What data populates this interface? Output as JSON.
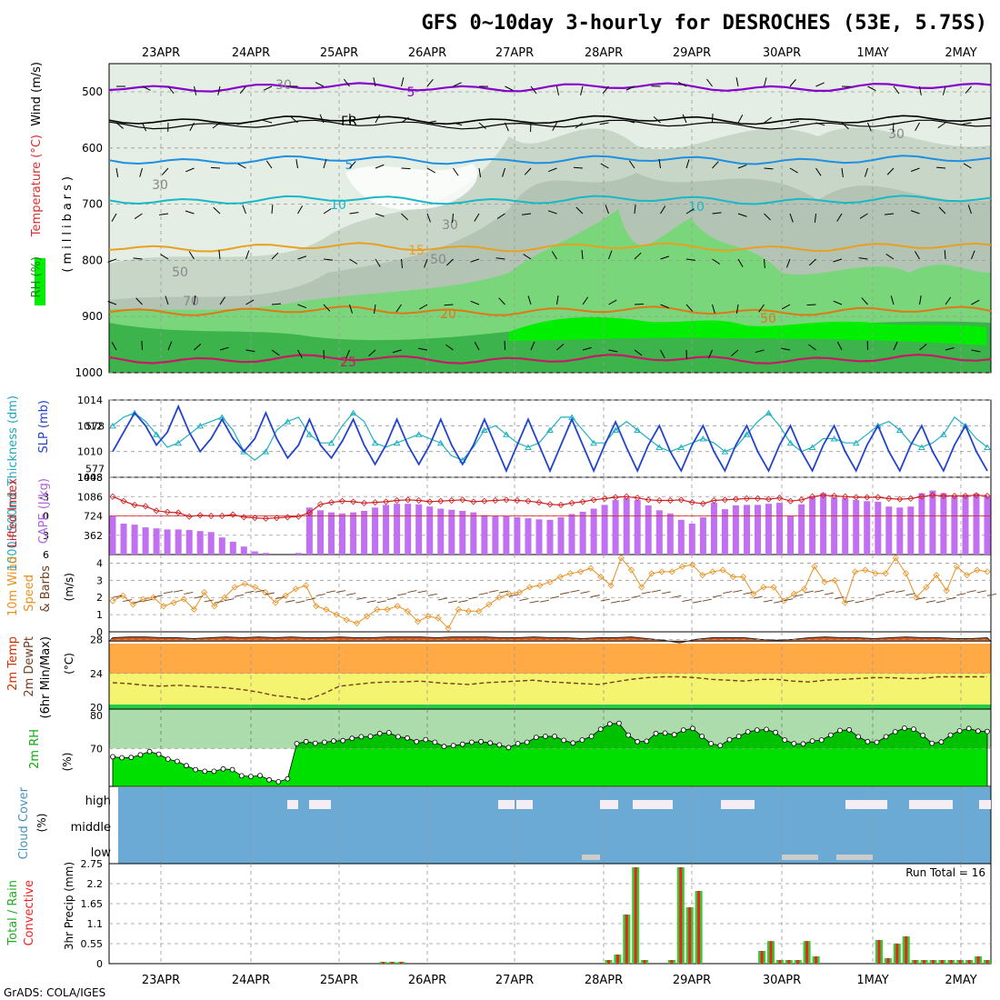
{
  "title": "GFS 0~10day 3-hourly for DESROCHES (53E, 5.75S)",
  "credit": "GrADS: COLA/IGES",
  "date_labels": [
    "23APR",
    "24APR",
    "25APR",
    "26APR",
    "27APR",
    "28APR",
    "29APR",
    "30APR",
    "1MAY",
    "2MAY"
  ],
  "colors": {
    "temp_contour_purple": "#8800cc",
    "temp_contour_blue": "#1e90e0",
    "temp_contour_cyan": "#19b8c8",
    "temp_contour_orange": "#e8a020",
    "temp_contour_darkorange": "#e07818",
    "temp_contour_magenta": "#c81868",
    "rh_green": "#3cb44b",
    "rh_bright": "#00ee00",
    "cape_bar": "#c070f0",
    "lifted_index": "#d02020",
    "slp_line": "#2244cc",
    "thickness_line": "#20b0c0",
    "wind_speed": "#e89020",
    "barb": "#704020",
    "temp_band": "#ffaa44",
    "dew_band": "#f4f470",
    "rh2m": "#00e000",
    "cloud": "#6aaad4",
    "cloud_gap": "#f4eef4",
    "precip_total": "#33cc33",
    "precip_conv": "#ee2222"
  },
  "panels": {
    "upper": {
      "label_rh": "RH (%)",
      "label_temp": "Temperature (°C)",
      "label_wind": "Wind (m/s)",
      "label_units": "(millibars)",
      "y_ticks": [
        "500",
        "600",
        "700",
        "800",
        "900",
        "1000"
      ],
      "contour_labels": [
        "5",
        "FR",
        "5",
        "10",
        "15",
        "20",
        "25",
        "10",
        "30",
        "30",
        "50",
        "70",
        "50",
        "30",
        "30",
        "50"
      ]
    },
    "slp": {
      "label_thick": "1000~500mb Thickness (dm)",
      "label_slp": "SLP (mb)",
      "left_ticks": [
        "578",
        "577"
      ],
      "right_ticks": [
        "1014",
        "1012",
        "1010",
        "1008"
      ]
    },
    "cape": {
      "label_li": "Lifted Index",
      "label_cape": "CAPE (J/kg)",
      "left_ticks": [
        "-3",
        "0",
        "3",
        "6",
        "-6"
      ],
      "right_ticks": [
        "1448",
        "1086",
        "724",
        "362"
      ]
    },
    "wind10": {
      "label1": "10m Wind",
      "label2": "Speed",
      "label3": "& Barbs",
      "units": "(m/s)",
      "ticks": [
        "4",
        "3",
        "2",
        "1",
        "0"
      ]
    },
    "temp2m": {
      "label1": "2m Temp",
      "label2": "2m DewPt",
      "label3": "(6hr Min/Max)",
      "units": "(°C)",
      "ticks": [
        "28",
        "24",
        "20"
      ]
    },
    "rh2m": {
      "label": "2m RH",
      "units": "(%)",
      "ticks": [
        "80",
        "70"
      ]
    },
    "cloud": {
      "label": "Cloud Cover",
      "units": "(%)",
      "levels": [
        "high",
        "middle",
        "low"
      ]
    },
    "precip": {
      "label1": "Total / Rain",
      "label2": "Convective",
      "units": "3hr Precip (mm)",
      "ticks": [
        "2.75",
        "2.2",
        "1.65",
        "1.1",
        "0.55",
        "0"
      ],
      "run_total": "Run Total = 16"
    }
  },
  "chart_data": [
    {
      "type": "line",
      "title": "1000~500mb Thickness (dm) / SLP (mb)",
      "x_unit": "3-hourly steps from 22APR 18Z",
      "series": [
        {
          "name": "SLP (mb)",
          "axis": "right",
          "values": [
            1010,
            1011.5,
            1013,
            1012,
            1010.5,
            1011.5,
            1013.5,
            1011.5,
            1010,
            1011,
            1012.5,
            1011,
            1010,
            1011,
            1013,
            1011,
            1009.5,
            1010.5,
            1012.5,
            1010.5,
            1009.5,
            1010.8,
            1012.5,
            1010.5,
            1009,
            1010.5,
            1012.5,
            1010.5,
            1009,
            1010.5,
            1012.5,
            1010.5,
            1009,
            1010.5,
            1012.5,
            1010.5,
            1008.5,
            1010.5,
            1012.5,
            1010.5,
            1008.5,
            1010.5,
            1012.5,
            1010.5,
            1008.5,
            1010.5,
            1012.3,
            1010.3,
            1008.5,
            1010.5,
            1012,
            1010,
            1008.5,
            1010.5,
            1012,
            1010,
            1008.5,
            1010.5,
            1012,
            1010,
            1008.5,
            1010.5,
            1012,
            1010,
            1008.5,
            1010.5,
            1012,
            1010,
            1008.5,
            1010.5,
            1012,
            1010,
            1008.5,
            1010.5,
            1012,
            1010,
            1008.5,
            1010.5,
            1012,
            1010,
            1008.5
          ]
        },
        {
          "name": "Thickness (dm)",
          "axis": "left",
          "values": [
            578,
            578.2,
            578.3,
            578.1,
            577.8,
            577.5,
            577.6,
            577.8,
            578,
            578.1,
            578.2,
            577.9,
            577.4,
            577.2,
            577.4,
            577.9,
            578.1,
            578.2,
            577.8,
            577.6,
            577.6,
            578,
            578.3,
            578.1,
            577.6,
            577.5,
            577.6,
            577.7,
            577.8,
            577.7,
            577.6,
            577.3,
            577.2,
            577.5,
            577.9,
            578,
            577.8,
            577.6,
            577.5,
            577.6,
            577.9,
            578.2,
            578.2,
            577.9,
            577.6,
            577.6,
            577.9,
            578.1,
            577.9,
            577.7,
            577.5,
            577.4,
            577.5,
            577.6,
            577.7,
            577.6,
            577.4,
            577.5,
            577.8,
            578.1,
            578.3,
            578,
            577.6,
            577.4,
            577.5,
            577.7,
            577.7,
            577.6,
            577.6,
            577.8,
            578,
            578.1,
            577.9,
            577.6,
            577.5,
            577.6,
            577.8,
            578.2,
            578,
            577.7,
            577.5
          ]
        }
      ],
      "ylim_left": [
        576.8,
        578.6
      ],
      "ylim_right": [
        1008,
        1014
      ]
    },
    {
      "type": "bar",
      "title": "CAPE (J/kg) / Lifted Index",
      "series": [
        {
          "name": "CAPE (J/kg)",
          "values": [
            720,
            580,
            560,
            510,
            490,
            470,
            470,
            460,
            440,
            420,
            320,
            240,
            150,
            60,
            30,
            0,
            0,
            30,
            880,
            830,
            790,
            770,
            790,
            820,
            880,
            930,
            950,
            950,
            940,
            900,
            860,
            840,
            820,
            790,
            740,
            720,
            720,
            700,
            680,
            660,
            650,
            700,
            760,
            800,
            860,
            930,
            1020,
            1060,
            1020,
            920,
            830,
            770,
            650,
            580,
            700,
            970,
            850,
            920,
            930,
            930,
            950,
            970,
            730,
            940,
            1090,
            1150,
            1070,
            1060,
            1020,
            1000,
            990,
            900,
            880,
            900,
            1150,
            1200,
            1150,
            1100,
            1120,
            1140,
            1100
          ]
        },
        {
          "name": "Lifted Index",
          "values": [
            -3,
            -2.3,
            -1.7,
            -1.5,
            -0.8,
            -0.6,
            -0.5,
            0.1,
            -0.1,
            0,
            0,
            -0.2,
            0.2,
            0.3,
            0.4,
            0.3,
            0.2,
            0.1,
            -0.5,
            -1.8,
            -2.1,
            -2.3,
            -2.2,
            -2.0,
            -2.1,
            -2.2,
            -2.4,
            -2.5,
            -2.4,
            -2.2,
            -2.3,
            -2.4,
            -2.5,
            -2.2,
            -2.3,
            -2.4,
            -2.5,
            -2.4,
            -2.3,
            -2.1,
            -1.8,
            -1.7,
            -2.0,
            -2.2,
            -2.5,
            -2.7,
            -2.9,
            -3.0,
            -2.8,
            -2.5,
            -2.4,
            -2.4,
            -2.5,
            -2.1,
            -1.9,
            -2.4,
            -2.5,
            -2.6,
            -2.7,
            -2.7,
            -2.6,
            -2.8,
            -2.3,
            -2.5,
            -3.0,
            -3.2,
            -3.1,
            -3.0,
            -2.9,
            -2.9,
            -2.9,
            -2.7,
            -2.6,
            -2.7,
            -3.0,
            -3.2,
            -3.1,
            -3.1,
            -3.1,
            -3.2,
            -3.1
          ]
        }
      ],
      "ylim_right": [
        0,
        1448
      ],
      "ylim_left": [
        6,
        -6
      ]
    },
    {
      "type": "line",
      "title": "10m Wind Speed (m/s)",
      "series": [
        {
          "name": "Speed (m/s)",
          "values": [
            1.8,
            2.1,
            1.6,
            1.9,
            2.0,
            1.5,
            1.7,
            1.9,
            1.3,
            2.3,
            1.5,
            2.0,
            2.6,
            2.8,
            2.6,
            2.3,
            1.7,
            2.1,
            2.5,
            2.7,
            1.5,
            1.3,
            1.0,
            0.7,
            0.5,
            0.9,
            1.3,
            1.3,
            1.5,
            1.2,
            0.6,
            0.9,
            0.8,
            0.2,
            1.3,
            1.2,
            1.2,
            1.6,
            2.0,
            2.2,
            2.3,
            2.6,
            2.7,
            2.9,
            3.2,
            3.4,
            3.5,
            3.7,
            3.2,
            2.7,
            4.3,
            3.6,
            2.6,
            3.4,
            3.5,
            3.5,
            3.8,
            3.9,
            3.3,
            3.5,
            3.6,
            3.2,
            3.2,
            2.2,
            2.6,
            2.6,
            1.8,
            2.2,
            2.5,
            3.8,
            2.9,
            3.0,
            1.7,
            3.5,
            3.6,
            3.4,
            3.4,
            4.3,
            3.4,
            2.0,
            2.6,
            3.3,
            2.4,
            3.8,
            3.3,
            3.6,
            3.5
          ]
        }
      ],
      "ylim": [
        0,
        4.5
      ]
    },
    {
      "type": "area",
      "title": "2m Temp / 2m DewPt (°C)",
      "series": [
        {
          "name": "2m Temp max",
          "values": [
            28.2,
            28.3,
            28.3,
            28.2,
            28.2,
            28.1,
            28.2,
            28.3,
            28.2,
            28.3,
            28.2,
            28.3,
            28.2,
            28.2,
            28.3,
            28.2,
            28.2,
            28.3,
            28.3,
            28.3,
            28.2,
            28.3,
            28.3,
            28.3,
            28.2,
            28.2,
            28.3,
            28.2,
            28.2,
            28.1,
            28.2,
            28.2,
            28.3,
            28.1,
            27.9,
            27.6,
            28.0,
            28.2,
            28.2,
            28.2,
            28.0,
            27.9,
            28.0,
            28.2,
            28.3,
            28.2,
            28.2,
            28.1,
            28.2,
            28.3,
            28.2,
            28.2,
            28.1,
            28.1,
            28.2
          ]
        },
        {
          "name": "2m DewPt",
          "values": [
            22.9,
            22.8,
            22.6,
            22.5,
            22.6,
            22.5,
            22.4,
            22.3,
            22.1,
            21.8,
            21.4,
            21.2,
            20.9,
            21.6,
            22.5,
            22.7,
            22.9,
            23.0,
            23.0,
            23.1,
            22.9,
            22.8,
            22.7,
            22.9,
            23.0,
            23.1,
            23.2,
            23.0,
            22.9,
            22.8,
            22.7,
            23.0,
            23.3,
            23.5,
            23.6,
            23.6,
            23.5,
            23.3,
            23.2,
            23.1,
            23.3,
            23.3,
            23.1,
            23.0,
            23.2,
            23.3,
            23.4,
            23.5,
            23.5,
            23.4,
            23.4,
            23.6,
            23.6,
            23.6,
            23.6
          ]
        }
      ],
      "ylim": [
        19.8,
        28.9
      ]
    },
    {
      "type": "area",
      "title": "2m RH (%)",
      "series": [
        {
          "name": "2m RH (%)",
          "values": [
            67.5,
            67.2,
            67.3,
            68.1,
            69.1,
            68.3,
            66.8,
            66.1,
            64.8,
            63.6,
            63.1,
            63.1,
            63.8,
            63.6,
            61.7,
            61.5,
            61.8,
            60.5,
            59.9,
            60.8,
            71.5,
            72.1,
            71.6,
            71.9,
            72.3,
            72.4,
            73.1,
            73.6,
            73.7,
            74.6,
            74.8,
            73.6,
            73.2,
            72.1,
            72.7,
            71.9,
            70.6,
            70.9,
            71.3,
            71.9,
            72.1,
            71.7,
            71.1,
            70.3,
            71.5,
            71.9,
            73.4,
            73.7,
            73.7,
            72.5,
            71.7,
            72.6,
            73.7,
            75.9,
            77.5,
            77.7,
            74.1,
            72.1,
            72.2,
            74.6,
            74.7,
            74.2,
            75.6,
            76.1,
            73.7,
            71.5,
            70.9,
            72.7,
            73.7,
            75.1,
            75.6,
            75.8,
            74.9,
            72.6,
            71.5,
            71.4,
            72.3,
            72.6,
            74.1,
            75.5,
            75.7,
            73.6,
            72.1,
            71.9,
            73.6,
            75.1,
            76.2,
            75.9,
            74.0,
            71.6,
            72.0,
            74.1,
            75.4,
            76.1,
            75.3,
            75.2
          ]
        }
      ],
      "ylim": [
        58.5,
        82
      ]
    },
    {
      "type": "bar",
      "title": "Cloud Cover (%)",
      "categories": [
        "high",
        "middle",
        "low"
      ],
      "note": "nearly full coverage across the period with intermittent gaps in high cloud"
    },
    {
      "type": "bar",
      "title": "3hr Precip (mm)",
      "series": [
        {
          "name": "Total / Rain",
          "values": [
            0,
            0,
            0,
            0,
            0,
            0,
            0,
            0,
            0,
            0,
            0,
            0,
            0,
            0,
            0,
            0,
            0,
            0,
            0,
            0,
            0,
            0,
            0,
            0,
            0,
            0,
            0,
            0,
            0,
            0,
            0.05,
            0.05,
            0.05,
            0,
            0,
            0,
            0,
            0,
            0,
            0,
            0,
            0,
            0,
            0,
            0,
            0,
            0,
            0,
            0,
            0,
            0,
            0,
            0,
            0,
            0,
            0.1,
            0.25,
            1.35,
            2.65,
            0.1,
            0,
            0,
            0.1,
            2.65,
            1.55,
            2.0,
            0,
            0,
            0,
            0,
            0,
            0,
            0.35,
            0.62,
            0.1,
            0.1,
            0.1,
            0.62,
            0.2,
            0,
            0,
            0,
            0,
            0,
            0,
            0.65,
            0.15,
            0.55,
            0.75,
            0.1,
            0.1,
            0.1,
            0.1,
            0.1,
            0.1,
            0.1,
            0.2,
            0.1
          ]
        },
        {
          "name": "Convective",
          "values": [
            0,
            0,
            0,
            0,
            0,
            0,
            0,
            0,
            0,
            0,
            0,
            0,
            0,
            0,
            0,
            0,
            0,
            0,
            0,
            0,
            0,
            0,
            0,
            0,
            0,
            0,
            0,
            0,
            0,
            0,
            0.05,
            0.05,
            0.05,
            0,
            0,
            0,
            0,
            0,
            0,
            0,
            0,
            0,
            0,
            0,
            0,
            0,
            0,
            0,
            0,
            0,
            0,
            0,
            0,
            0,
            0,
            0.1,
            0.25,
            1.35,
            2.65,
            0.1,
            0,
            0,
            0.1,
            2.65,
            1.55,
            2.0,
            0,
            0,
            0,
            0,
            0,
            0,
            0.35,
            0.62,
            0.1,
            0.1,
            0.1,
            0.62,
            0.2,
            0,
            0,
            0,
            0,
            0,
            0,
            0.65,
            0.15,
            0.55,
            0.75,
            0.1,
            0.1,
            0.1,
            0.1,
            0.1,
            0.1,
            0.1,
            0.2,
            0.1
          ]
        }
      ],
      "ylim": [
        0,
        2.75
      ]
    }
  ]
}
